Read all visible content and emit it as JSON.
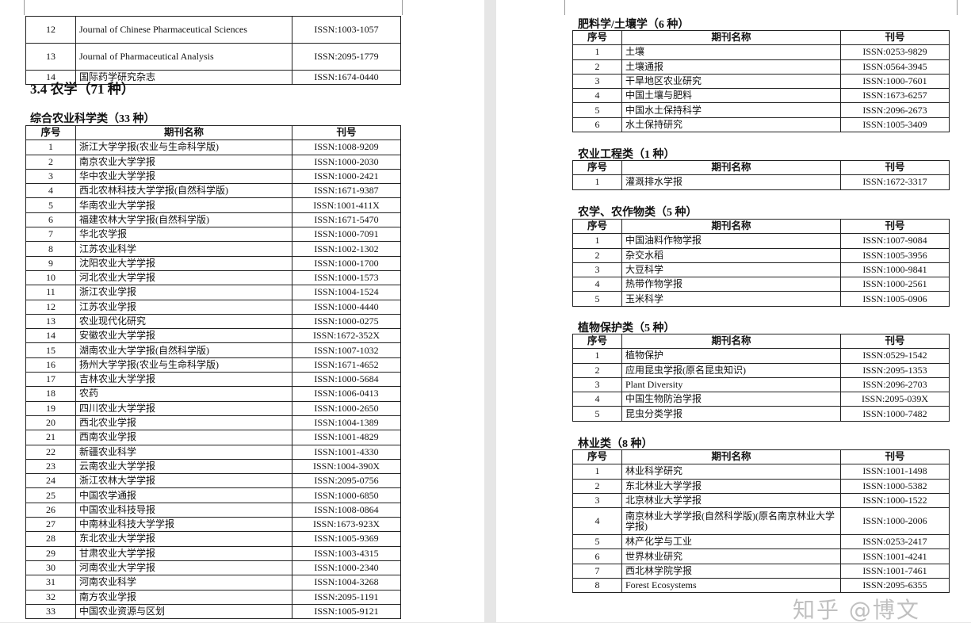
{
  "columns": [
    "序号",
    "期刊名称",
    "刊号"
  ],
  "left": {
    "continued_rows": [
      [
        "12",
        "Journal of Chinese Pharmaceutical Sciences",
        "ISSN:1003-1057"
      ],
      [
        "13",
        "Journal of Pharmaceutical Analysis",
        "ISSN:2095-1779"
      ],
      [
        "14",
        "国际药学研究杂志",
        "ISSN:1674-0440"
      ]
    ],
    "section_heading": "3.4  农学（71  种）",
    "category": {
      "title": "综合农业科学类（33 种）",
      "rows": [
        [
          "1",
          "浙江大学学报(农业与生命科学版)",
          "ISSN:1008-9209"
        ],
        [
          "2",
          "南京农业大学学报",
          "ISSN:1000-2030"
        ],
        [
          "3",
          "华中农业大学学报",
          "ISSN:1000-2421"
        ],
        [
          "4",
          "西北农林科技大学学报(自然科学版)",
          "ISSN:1671-9387"
        ],
        [
          "5",
          "华南农业大学学报",
          "ISSN:1001-411X"
        ],
        [
          "6",
          "福建农林大学学报(自然科学版)",
          "ISSN:1671-5470"
        ],
        [
          "7",
          "华北农学报",
          "ISSN:1000-7091"
        ],
        [
          "8",
          "江苏农业科学",
          "ISSN:1002-1302"
        ],
        [
          "9",
          "沈阳农业大学学报",
          "ISSN:1000-1700"
        ],
        [
          "10",
          "河北农业大学学报",
          "ISSN:1000-1573"
        ],
        [
          "11",
          "浙江农业学报",
          "ISSN:1004-1524"
        ],
        [
          "12",
          "江苏农业学报",
          "ISSN:1000-4440"
        ],
        [
          "13",
          "农业现代化研究",
          "ISSN:1000-0275"
        ],
        [
          "14",
          "安徽农业大学学报",
          "ISSN:1672-352X"
        ],
        [
          "15",
          "湖南农业大学学报(自然科学版)",
          "ISSN:1007-1032"
        ],
        [
          "16",
          "扬州大学学报(农业与生命科学版)",
          "ISSN:1671-4652"
        ],
        [
          "17",
          "吉林农业大学学报",
          "ISSN:1000-5684"
        ],
        [
          "18",
          "农药",
          "ISSN:1006-0413"
        ],
        [
          "19",
          "四川农业大学学报",
          "ISSN:1000-2650"
        ],
        [
          "20",
          "西北农业学报",
          "ISSN:1004-1389"
        ],
        [
          "21",
          "西南农业学报",
          "ISSN:1001-4829"
        ],
        [
          "22",
          "新疆农业科学",
          "ISSN:1001-4330"
        ],
        [
          "23",
          "云南农业大学学报",
          "ISSN:1004-390X"
        ],
        [
          "24",
          "浙江农林大学学报",
          "ISSN:2095-0756"
        ],
        [
          "25",
          "中国农学通报",
          "ISSN:1000-6850"
        ],
        [
          "26",
          "中国农业科技导报",
          "ISSN:1008-0864"
        ],
        [
          "27",
          "中南林业科技大学学报",
          "ISSN:1673-923X"
        ],
        [
          "28",
          "东北农业大学学报",
          "ISSN:1005-9369"
        ],
        [
          "29",
          "甘肃农业大学学报",
          "ISSN:1003-4315"
        ],
        [
          "30",
          "河南农业大学学报",
          "ISSN:1000-2340"
        ],
        [
          "31",
          "河南农业科学",
          "ISSN:1004-3268"
        ],
        [
          "32",
          "南方农业学报",
          "ISSN:2095-1191"
        ],
        [
          "33",
          "中国农业资源与区划",
          "ISSN:1005-9121"
        ]
      ]
    }
  },
  "right": {
    "categories": [
      {
        "title": "肥料学/土壤学（6 种）",
        "rows": [
          [
            "1",
            "土壤",
            "ISSN:0253-9829"
          ],
          [
            "2",
            "土壤通报",
            "ISSN:0564-3945"
          ],
          [
            "3",
            "干旱地区农业研究",
            "ISSN:1000-7601"
          ],
          [
            "4",
            "中国土壤与肥料",
            "ISSN:1673-6257"
          ],
          [
            "5",
            "中国水土保持科学",
            "ISSN:2096-2673"
          ],
          [
            "6",
            "水土保持研究",
            "ISSN:1005-3409"
          ]
        ]
      },
      {
        "title": "农业工程类（1 种）",
        "rows": [
          [
            "1",
            "灌溉排水学报",
            "ISSN:1672-3317"
          ]
        ]
      },
      {
        "title": "农学、农作物类（5 种）",
        "rows": [
          [
            "1",
            "中国油料作物学报",
            "ISSN:1007-9084"
          ],
          [
            "2",
            "杂交水稻",
            "ISSN:1005-3956"
          ],
          [
            "3",
            "大豆科学",
            "ISSN:1000-9841"
          ],
          [
            "4",
            "热带作物学报",
            "ISSN:1000-2561"
          ],
          [
            "5",
            "玉米科学",
            "ISSN:1005-0906"
          ]
        ]
      },
      {
        "title": "植物保护类（5 种）",
        "rows": [
          [
            "1",
            "植物保护",
            "ISSN:0529-1542"
          ],
          [
            "2",
            "应用昆虫学报(原名昆虫知识)",
            "ISSN:2095-1353"
          ],
          [
            "3",
            "Plant Diversity",
            "ISSN:2096-2703"
          ],
          [
            "4",
            "中国生物防治学报",
            "ISSN:2095-039X"
          ],
          [
            "5",
            "昆虫分类学报",
            "ISSN:1000-7482"
          ]
        ]
      },
      {
        "title": "林业类（8 种）",
        "rows": [
          [
            "1",
            "林业科学研究",
            "ISSN:1001-1498"
          ],
          [
            "2",
            "东北林业大学学报",
            "ISSN:1000-5382"
          ],
          [
            "3",
            "北京林业大学学报",
            "ISSN:1000-1522"
          ],
          [
            "4",
            "南京林业大学学报(自然科学版)(原名南京林业大学学报)",
            "ISSN:1000-2006"
          ],
          [
            "5",
            "林产化学与工业",
            "ISSN:0253-2417"
          ],
          [
            "6",
            "世界林业研究",
            "ISSN:1001-4241"
          ],
          [
            "7",
            "西北林学院学报",
            "ISSN:1001-7461"
          ],
          [
            "8",
            "Forest Ecosystems",
            "ISSN:2095-6355"
          ]
        ]
      }
    ]
  },
  "watermark": "知乎 @博文"
}
